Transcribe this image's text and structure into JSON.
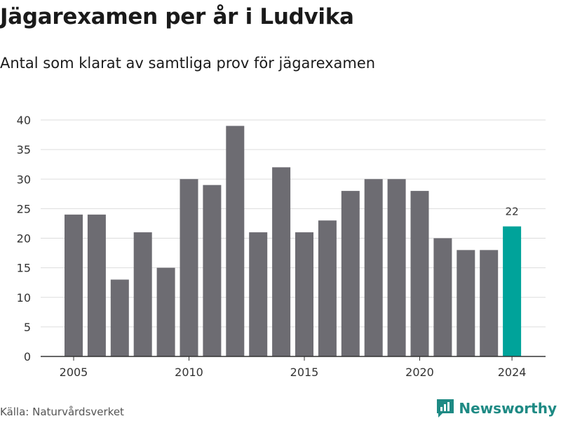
{
  "title": "Jägarexamen per år i Ludvika",
  "subtitle": "Antal som klarat av samtliga prov för jägarexamen",
  "source": "Källa: Naturvårdsverket",
  "brand": {
    "name": "Newsworthy",
    "icon": "newsworthy-logo-icon"
  },
  "colors": {
    "bar": "#6d6c72",
    "highlight": "#00a39a",
    "grid": "#dddddd",
    "axis": "#333333",
    "brand": "#1e8a84"
  },
  "chart_data": {
    "type": "bar",
    "title": "Jägarexamen per år i Ludvika",
    "xlabel": "",
    "ylabel": "",
    "categories": [
      "2005",
      "2006",
      "2007",
      "2008",
      "2009",
      "2010",
      "2011",
      "2012",
      "2013",
      "2014",
      "2015",
      "2016",
      "2017",
      "2018",
      "2019",
      "2020",
      "2021",
      "2022",
      "2023",
      "2024"
    ],
    "values": [
      24,
      24,
      13,
      21,
      15,
      30,
      29,
      39,
      21,
      32,
      21,
      23,
      28,
      30,
      30,
      28,
      20,
      18,
      18,
      22
    ],
    "ylim": [
      0,
      40
    ],
    "yticks": [
      "0",
      "5",
      "10",
      "15",
      "20",
      "25",
      "30",
      "35",
      "40"
    ],
    "xticks": [
      "2005",
      "2010",
      "2015",
      "2020",
      "2024"
    ],
    "highlight": {
      "category": "2024",
      "label": "22"
    },
    "grid": true,
    "legend": "none"
  }
}
